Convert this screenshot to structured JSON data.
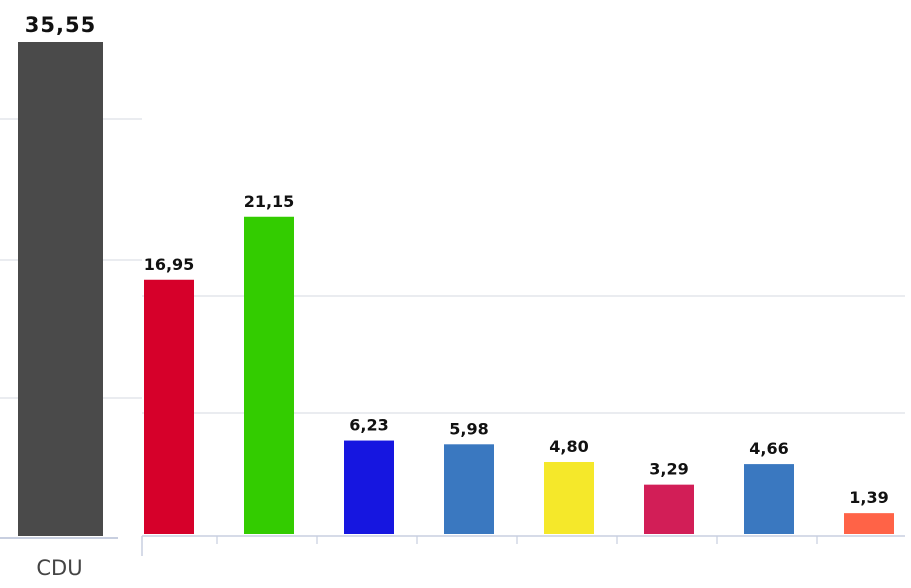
{
  "chart_data": {
    "type": "bar",
    "grid": true,
    "categories": [
      "CDU",
      "",
      "",
      "",
      "",
      "",
      "",
      "",
      ""
    ],
    "values": [
      35.55,
      16.95,
      21.15,
      6.23,
      5.98,
      4.8,
      3.29,
      4.66,
      1.39
    ],
    "value_labels": [
      "35,55",
      "16,95",
      "21,15",
      "6,23",
      "5,98",
      "4,80",
      "3,29",
      "4,66",
      "1,39"
    ],
    "colors": [
      "#4a4a4a",
      "#d6002a",
      "#33cc00",
      "#1616e0",
      "#3a78c0",
      "#f5e82a",
      "#d21e57",
      "#3a78c0",
      "#ff6347"
    ]
  }
}
